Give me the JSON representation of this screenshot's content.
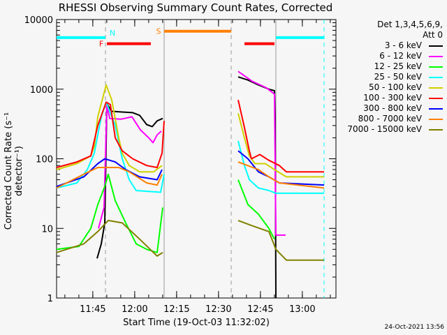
{
  "chart_data": {
    "type": "line",
    "title": "RHESSI Observing Summary Count Rates, Corrected",
    "xlabel": "Start Time (19-Oct-03 11:32:02)",
    "ylabel": "Corrected Count Rate (s⁻¹ detector⁻¹)",
    "x_units": "minutes since 11:32:02",
    "xlim": [
      0,
      100
    ],
    "ylim": [
      1,
      10000
    ],
    "yscale": "log",
    "ytick_labels": [
      "1",
      "10",
      "100",
      "1000",
      "10000"
    ],
    "xticks": [
      {
        "t": 12.97,
        "label": "11:45"
      },
      {
        "t": 27.97,
        "label": "12:00"
      },
      {
        "t": 42.97,
        "label": "12:15"
      },
      {
        "t": 57.97,
        "label": "12:30"
      },
      {
        "t": 72.97,
        "label": "12:45"
      },
      {
        "t": 87.97,
        "label": "13:00"
      }
    ],
    "legend_header": [
      "Det 1,3,4,5,6,9,",
      "Att 0"
    ],
    "legend_placement": "right",
    "series": [
      {
        "name": "3 - 6 keV",
        "color": "#000000",
        "segments": [
          [
            [
              14.5,
              3.7
            ],
            [
              16,
              6
            ],
            [
              17.25,
              12
            ],
            [
              18,
              615
            ],
            [
              19.75,
              480
            ],
            [
              23.5,
              470
            ],
            [
              27.25,
              460
            ],
            [
              29.75,
              420
            ],
            [
              32.25,
              310
            ],
            [
              34.25,
              290
            ],
            [
              36,
              350
            ],
            [
              38,
              380
            ]
          ],
          [
            [
              65,
              1500
            ],
            [
              68.5,
              1350
            ],
            [
              72.25,
              1150
            ],
            [
              76,
              1000
            ],
            [
              78,
              950
            ],
            [
              78.25,
              400
            ],
            [
              78.5,
              1
            ]
          ]
        ]
      },
      {
        "name": "6 - 12 keV",
        "color": "#ff00ff",
        "segments": [
          [
            [
              15,
              10
            ],
            [
              17,
              20
            ],
            [
              18,
              600
            ],
            [
              19,
              380
            ],
            [
              23,
              370
            ],
            [
              27,
              400
            ],
            [
              30,
              260
            ],
            [
              33,
              200
            ],
            [
              34.5,
              170
            ],
            [
              36,
              220
            ],
            [
              37.5,
              250
            ]
          ],
          [
            [
              65,
              1800
            ],
            [
              70,
              1300
            ],
            [
              75,
              1050
            ],
            [
              78,
              850
            ],
            [
              78.5,
              8
            ],
            [
              82,
              8
            ]
          ]
        ]
      },
      {
        "name": "12 - 25 keV",
        "color": "#00ff00",
        "segments": [
          [
            [
              0,
              5
            ],
            [
              8,
              5.5
            ],
            [
              12.25,
              10
            ],
            [
              14.75,
              22
            ],
            [
              17.25,
              40
            ],
            [
              18.5,
              60
            ],
            [
              21,
              25
            ],
            [
              24.75,
              12
            ],
            [
              28.5,
              6
            ],
            [
              32.25,
              5
            ],
            [
              36,
              4.5
            ],
            [
              38,
              20
            ]
          ],
          [
            [
              65,
              50
            ],
            [
              68.5,
              22
            ],
            [
              72.25,
              16
            ],
            [
              76,
              10
            ],
            [
              78,
              7
            ]
          ]
        ]
      },
      {
        "name": "25 - 50 keV",
        "color": "#00ffff",
        "segments": [
          [
            [
              0,
              38
            ],
            [
              7.25,
              45
            ],
            [
              11,
              70
            ],
            [
              13.5,
              120
            ],
            [
              16,
              400
            ],
            [
              17.75,
              650
            ],
            [
              21,
              300
            ],
            [
              23.5,
              100
            ],
            [
              26,
              50
            ],
            [
              28.5,
              35
            ],
            [
              37.25,
              33
            ],
            [
              38.5,
              60
            ]
          ],
          [
            [
              65,
              180
            ],
            [
              67.25,
              80
            ],
            [
              69,
              50
            ],
            [
              72.25,
              38
            ],
            [
              76,
              35
            ],
            [
              78.5,
              32
            ],
            [
              95.75,
              32
            ]
          ]
        ]
      },
      {
        "name": "50 - 100 keV",
        "color": "#d0d000",
        "segments": [
          [
            [
              0,
              70
            ],
            [
              7.25,
              85
            ],
            [
              12.25,
              110
            ],
            [
              13.5,
              150
            ],
            [
              14.75,
              400
            ],
            [
              17.75,
              1150
            ],
            [
              19.75,
              700
            ],
            [
              22.25,
              200
            ],
            [
              23.5,
              120
            ],
            [
              26,
              80
            ],
            [
              29.75,
              65
            ],
            [
              34.75,
              65
            ],
            [
              37.75,
              80
            ]
          ],
          [
            [
              65,
              450
            ],
            [
              67.25,
              200
            ],
            [
              69,
              110
            ],
            [
              71,
              85
            ],
            [
              74.75,
              85
            ],
            [
              78,
              70
            ],
            [
              82.25,
              55
            ],
            [
              95.75,
              55
            ]
          ]
        ]
      },
      {
        "name": "100 - 300 keV",
        "color": "#ff0000",
        "segments": [
          [
            [
              0,
              75
            ],
            [
              7.25,
              90
            ],
            [
              12.25,
              110
            ],
            [
              14.75,
              300
            ],
            [
              17.75,
              650
            ],
            [
              19.25,
              600
            ],
            [
              21,
              200
            ],
            [
              23.5,
              130
            ],
            [
              27.25,
              100
            ],
            [
              32.25,
              80
            ],
            [
              36,
              75
            ],
            [
              37.75,
              120
            ],
            [
              38.5,
              350
            ]
          ],
          [
            [
              65,
              700
            ],
            [
              67.25,
              280
            ],
            [
              69,
              130
            ],
            [
              69.75,
              100
            ],
            [
              72.75,
              115
            ],
            [
              76,
              95
            ],
            [
              79.75,
              80
            ],
            [
              82.25,
              65
            ],
            [
              95.75,
              65
            ]
          ]
        ]
      },
      {
        "name": "300 - 800 keV",
        "color": "#0000ff",
        "segments": [
          [
            [
              0,
              40
            ],
            [
              9.75,
              55
            ],
            [
              14.75,
              85
            ],
            [
              17.25,
              100
            ],
            [
              21,
              90
            ],
            [
              24.75,
              70
            ],
            [
              29.75,
              55
            ],
            [
              36,
              50
            ],
            [
              37.75,
              70
            ]
          ],
          [
            [
              65,
              130
            ],
            [
              68.5,
              100
            ],
            [
              72.25,
              65
            ],
            [
              76,
              55
            ],
            [
              79.75,
              45
            ],
            [
              95.75,
              42
            ]
          ]
        ]
      },
      {
        "name": "800 - 7000 keV",
        "color": "#ff8000",
        "segments": [
          [
            [
              0,
              38
            ],
            [
              9.75,
              60
            ],
            [
              14.75,
              75
            ],
            [
              22.25,
              75
            ],
            [
              26,
              65
            ],
            [
              32.25,
              45
            ],
            [
              36,
              42
            ],
            [
              37.75,
              60
            ]
          ],
          [
            [
              65,
              90
            ],
            [
              72.25,
              70
            ],
            [
              76,
              55
            ],
            [
              79.75,
              45
            ],
            [
              95.75,
              38
            ]
          ]
        ]
      },
      {
        "name": "7000 - 15000 keV",
        "color": "#808000",
        "segments": [
          [
            [
              0,
              4.5
            ],
            [
              9.75,
              6
            ],
            [
              14.75,
              9
            ],
            [
              18.5,
              13
            ],
            [
              23.5,
              12
            ],
            [
              29.75,
              7
            ],
            [
              33.5,
              5
            ],
            [
              36,
              4
            ],
            [
              38,
              4.5
            ]
          ],
          [
            [
              65,
              13
            ],
            [
              69.75,
              11
            ],
            [
              76,
              9
            ],
            [
              78.5,
              5
            ],
            [
              82.25,
              3.5
            ],
            [
              95.75,
              3.5
            ]
          ]
        ]
      }
    ],
    "state_bars": [
      {
        "label": "N",
        "color": "#00ffff",
        "level": 5500,
        "spans": [
          [
            0,
            17.5
          ],
          [
            78.5,
            95.75
          ]
        ]
      },
      {
        "label": "F",
        "color": "#ff0000",
        "level": 4500,
        "spans": [
          [
            18,
            33.75
          ],
          [
            67.25,
            78
          ]
        ]
      },
      {
        "label": "S",
        "color": "#ff8000",
        "level": 6800,
        "spans": [
          [
            38.5,
            62.5
          ]
        ]
      }
    ],
    "vertical_markers": [
      {
        "t": 17.5,
        "style": "dashed",
        "color": "#999999"
      },
      {
        "t": 38.5,
        "style": "solid",
        "color": "#999999"
      },
      {
        "t": 62.5,
        "style": "dashed",
        "color": "#999999"
      },
      {
        "t": 78.5,
        "style": "solid",
        "color": "#999999"
      },
      {
        "t": 95.75,
        "style": "dashed",
        "color": "#00ffff"
      }
    ]
  },
  "timestamp": "24-Oct-2021 13:56"
}
